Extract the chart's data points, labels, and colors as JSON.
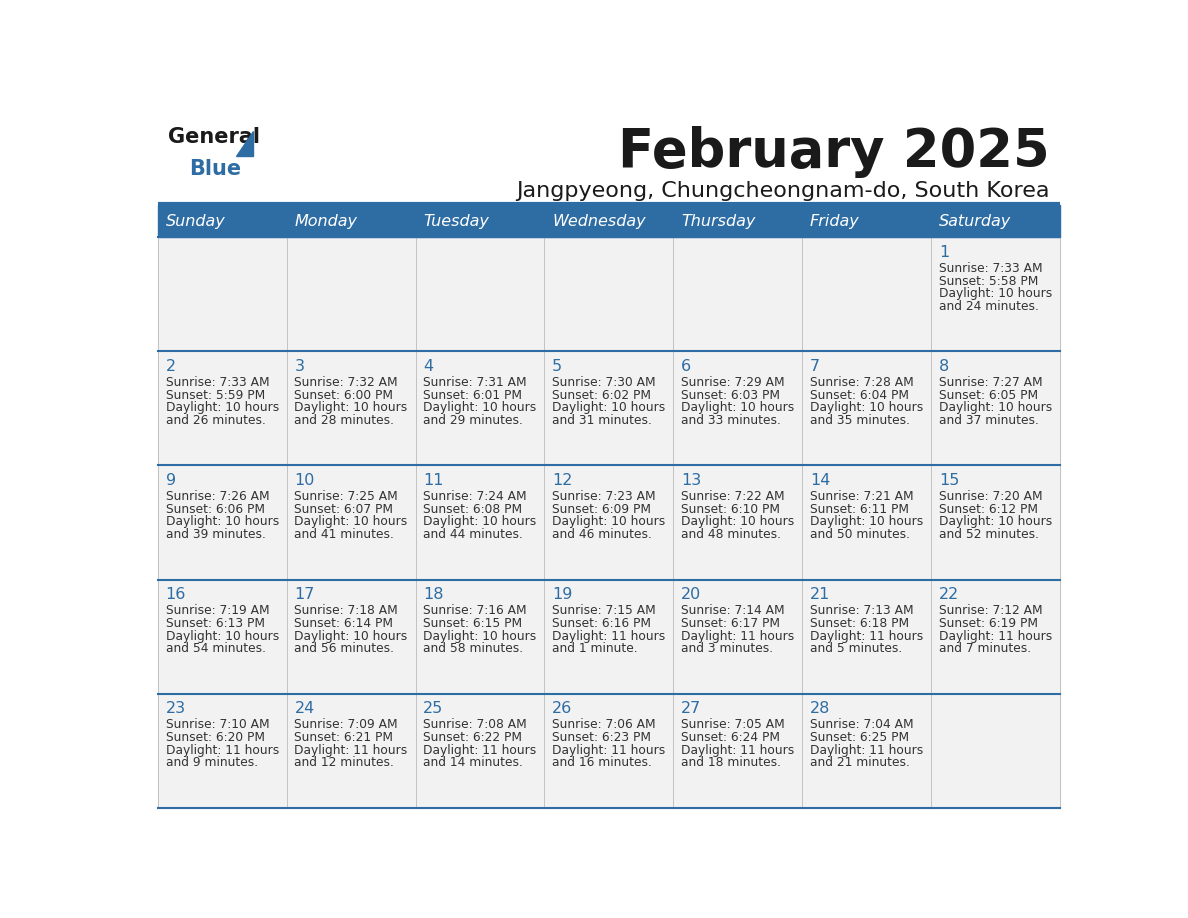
{
  "title": "February 2025",
  "subtitle": "Jangpyeong, Chungcheongnam-do, South Korea",
  "header_bg_color": "#2E6DA4",
  "header_text_color": "#FFFFFF",
  "title_color": "#1a1a1a",
  "subtitle_color": "#1a1a1a",
  "days_of_week": [
    "Sunday",
    "Monday",
    "Tuesday",
    "Wednesday",
    "Thursday",
    "Friday",
    "Saturday"
  ],
  "cell_bg_color": "#F2F2F2",
  "date_color": "#2E6DA4",
  "info_color": "#333333",
  "line_color": "#2E6DA4",
  "grid_color": "#BBBBBB",
  "calendar": [
    [
      null,
      null,
      null,
      null,
      null,
      null,
      {
        "day": "1",
        "sunrise": "7:33 AM",
        "sunset": "5:58 PM",
        "daylight1": "10 hours",
        "daylight2": "and 24 minutes."
      }
    ],
    [
      {
        "day": "2",
        "sunrise": "7:33 AM",
        "sunset": "5:59 PM",
        "daylight1": "10 hours",
        "daylight2": "and 26 minutes."
      },
      {
        "day": "3",
        "sunrise": "7:32 AM",
        "sunset": "6:00 PM",
        "daylight1": "10 hours",
        "daylight2": "and 28 minutes."
      },
      {
        "day": "4",
        "sunrise": "7:31 AM",
        "sunset": "6:01 PM",
        "daylight1": "10 hours",
        "daylight2": "and 29 minutes."
      },
      {
        "day": "5",
        "sunrise": "7:30 AM",
        "sunset": "6:02 PM",
        "daylight1": "10 hours",
        "daylight2": "and 31 minutes."
      },
      {
        "day": "6",
        "sunrise": "7:29 AM",
        "sunset": "6:03 PM",
        "daylight1": "10 hours",
        "daylight2": "and 33 minutes."
      },
      {
        "day": "7",
        "sunrise": "7:28 AM",
        "sunset": "6:04 PM",
        "daylight1": "10 hours",
        "daylight2": "and 35 minutes."
      },
      {
        "day": "8",
        "sunrise": "7:27 AM",
        "sunset": "6:05 PM",
        "daylight1": "10 hours",
        "daylight2": "and 37 minutes."
      }
    ],
    [
      {
        "day": "9",
        "sunrise": "7:26 AM",
        "sunset": "6:06 PM",
        "daylight1": "10 hours",
        "daylight2": "and 39 minutes."
      },
      {
        "day": "10",
        "sunrise": "7:25 AM",
        "sunset": "6:07 PM",
        "daylight1": "10 hours",
        "daylight2": "and 41 minutes."
      },
      {
        "day": "11",
        "sunrise": "7:24 AM",
        "sunset": "6:08 PM",
        "daylight1": "10 hours",
        "daylight2": "and 44 minutes."
      },
      {
        "day": "12",
        "sunrise": "7:23 AM",
        "sunset": "6:09 PM",
        "daylight1": "10 hours",
        "daylight2": "and 46 minutes."
      },
      {
        "day": "13",
        "sunrise": "7:22 AM",
        "sunset": "6:10 PM",
        "daylight1": "10 hours",
        "daylight2": "and 48 minutes."
      },
      {
        "day": "14",
        "sunrise": "7:21 AM",
        "sunset": "6:11 PM",
        "daylight1": "10 hours",
        "daylight2": "and 50 minutes."
      },
      {
        "day": "15",
        "sunrise": "7:20 AM",
        "sunset": "6:12 PM",
        "daylight1": "10 hours",
        "daylight2": "and 52 minutes."
      }
    ],
    [
      {
        "day": "16",
        "sunrise": "7:19 AM",
        "sunset": "6:13 PM",
        "daylight1": "10 hours",
        "daylight2": "and 54 minutes."
      },
      {
        "day": "17",
        "sunrise": "7:18 AM",
        "sunset": "6:14 PM",
        "daylight1": "10 hours",
        "daylight2": "and 56 minutes."
      },
      {
        "day": "18",
        "sunrise": "7:16 AM",
        "sunset": "6:15 PM",
        "daylight1": "10 hours",
        "daylight2": "and 58 minutes."
      },
      {
        "day": "19",
        "sunrise": "7:15 AM",
        "sunset": "6:16 PM",
        "daylight1": "11 hours",
        "daylight2": "and 1 minute."
      },
      {
        "day": "20",
        "sunrise": "7:14 AM",
        "sunset": "6:17 PM",
        "daylight1": "11 hours",
        "daylight2": "and 3 minutes."
      },
      {
        "day": "21",
        "sunrise": "7:13 AM",
        "sunset": "6:18 PM",
        "daylight1": "11 hours",
        "daylight2": "and 5 minutes."
      },
      {
        "day": "22",
        "sunrise": "7:12 AM",
        "sunset": "6:19 PM",
        "daylight1": "11 hours",
        "daylight2": "and 7 minutes."
      }
    ],
    [
      {
        "day": "23",
        "sunrise": "7:10 AM",
        "sunset": "6:20 PM",
        "daylight1": "11 hours",
        "daylight2": "and 9 minutes."
      },
      {
        "day": "24",
        "sunrise": "7:09 AM",
        "sunset": "6:21 PM",
        "daylight1": "11 hours",
        "daylight2": "and 12 minutes."
      },
      {
        "day": "25",
        "sunrise": "7:08 AM",
        "sunset": "6:22 PM",
        "daylight1": "11 hours",
        "daylight2": "and 14 minutes."
      },
      {
        "day": "26",
        "sunrise": "7:06 AM",
        "sunset": "6:23 PM",
        "daylight1": "11 hours",
        "daylight2": "and 16 minutes."
      },
      {
        "day": "27",
        "sunrise": "7:05 AM",
        "sunset": "6:24 PM",
        "daylight1": "11 hours",
        "daylight2": "and 18 minutes."
      },
      {
        "day": "28",
        "sunrise": "7:04 AM",
        "sunset": "6:25 PM",
        "daylight1": "11 hours",
        "daylight2": "and 21 minutes."
      },
      null
    ]
  ],
  "logo_general_color": "#1a1a1a",
  "logo_blue_color": "#2E6DA4",
  "logo_triangle_color": "#2E6DA4"
}
